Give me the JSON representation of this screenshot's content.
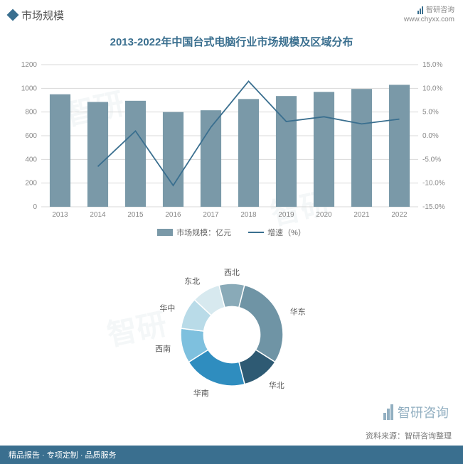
{
  "header": {
    "title": "市场规模",
    "brand": "智研咨询",
    "site": "www.chyxx.com"
  },
  "chart": {
    "title": "2013-2022年中国台式电脑行业市场规模及区域分布",
    "type": "bar+line",
    "categories": [
      "2013",
      "2014",
      "2015",
      "2016",
      "2017",
      "2018",
      "2019",
      "2020",
      "2021",
      "2022"
    ],
    "bar_values": [
      950,
      885,
      895,
      800,
      815,
      910,
      935,
      970,
      995,
      1030
    ],
    "line_values": [
      null,
      -6.5,
      1.0,
      -10.5,
      1.8,
      11.5,
      3.0,
      4.0,
      2.5,
      3.5
    ],
    "bar_color": "#7a99a8",
    "line_color": "#3a6f8f",
    "grid_color": "#d9d9d9",
    "axis_text_color": "#888888",
    "y_left": {
      "min": 0,
      "max": 1200,
      "step": 200
    },
    "y_right": {
      "min": -15,
      "max": 15,
      "step": 5,
      "suffix": "%"
    },
    "legend_bar": "市场规模：亿元",
    "legend_line": "增速（%）",
    "label_fontsize": 10,
    "title_fontsize": 15,
    "background_color": "#ffffff"
  },
  "donut": {
    "type": "donut",
    "segments": [
      {
        "label": "华东",
        "value": 30,
        "color": "#6f94a5"
      },
      {
        "label": "华北",
        "value": 12,
        "color": "#2e5a73"
      },
      {
        "label": "华南",
        "value": 20,
        "color": "#2f8dbf"
      },
      {
        "label": "西南",
        "value": 11,
        "color": "#7ec0de"
      },
      {
        "label": "华中",
        "value": 10,
        "color": "#b9dbe8"
      },
      {
        "label": "东北",
        "value": 9,
        "color": "#d7e9ef"
      },
      {
        "label": "西北",
        "value": 8,
        "color": "#89aab8"
      }
    ],
    "inner_ratio": 0.55,
    "label_color": "#555555",
    "label_fontsize": 11
  },
  "source": "资料来源：智研咨询整理",
  "footer": "精品报告 · 专项定制 · 品质服务",
  "big_logo_text": "智研咨询"
}
